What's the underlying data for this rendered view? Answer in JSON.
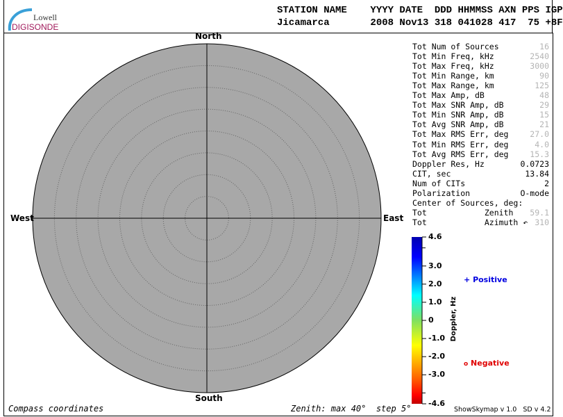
{
  "logo": {
    "line1": "Lowell",
    "line2": "DIGISONDE"
  },
  "header": {
    "labels": "STATION NAME    YYYY DATE  DDD HHMMSS AXN PPS IGP",
    "values": "Jicamarca       2008 Nov13 318 041028 417  75 +8F"
  },
  "stats": [
    {
      "label": "Tot Num of Sources",
      "value": "16",
      "grey": true
    },
    {
      "label": "Tot Min Freq, kHz",
      "value": "2540",
      "grey": true
    },
    {
      "label": "Tot Max Freq, kHz",
      "value": "3000",
      "grey": true
    },
    {
      "label": "Tot Min Range, km",
      "value": "90",
      "grey": true
    },
    {
      "label": "Tot Max Range, km",
      "value": "125",
      "grey": true
    },
    {
      "label": "Tot Max Amp, dB",
      "value": "48",
      "grey": true
    },
    {
      "label": "Tot Max SNR Amp, dB",
      "value": "29",
      "grey": true
    },
    {
      "label": "Tot Min SNR Amp, dB",
      "value": "15",
      "grey": true
    },
    {
      "label": "Tot Avg SNR Amp, dB",
      "value": "21",
      "grey": true
    },
    {
      "label": "Tot Max RMS Err, deg",
      "value": "27.0",
      "grey": true
    },
    {
      "label": "Tot Min RMS Err, deg",
      "value": "4.0",
      "grey": true
    },
    {
      "label": "Tot Avg RMS Err, deg",
      "value": "15.3",
      "grey": true
    },
    {
      "label": "Doppler Res, Hz",
      "value": "0.0723",
      "grey": false
    },
    {
      "label": "CIT, sec",
      "value": "13.84",
      "grey": false
    },
    {
      "label": "Num of CITs",
      "value": "2",
      "grey": false
    },
    {
      "label": "Polarization",
      "value": "O-mode",
      "grey": false
    },
    {
      "label": "Center of Sources, deg:",
      "value": "",
      "grey": false
    },
    {
      "label": "Tot            Zenith",
      "value": "59.1",
      "grey": true
    },
    {
      "label": "Tot            Azimuth ↶",
      "value": "310",
      "grey": true
    }
  ],
  "chart_data": {
    "type": "polar-skymap",
    "directions": {
      "north": "North",
      "south": "South",
      "east": "East",
      "west": "West"
    },
    "zenith_max_deg": 40,
    "zenith_step_deg": 5,
    "plot_bg": "#a8a8a8",
    "points": [],
    "colorbar": {
      "label": "Doppler, Hz",
      "min": -4.6,
      "max": 4.6,
      "ticks": [
        "4.6",
        "3.0",
        "2.0",
        "1.0",
        "0",
        "-1.0",
        "-2.0",
        "-3.0",
        "-4.6"
      ],
      "tick_values": [
        4.6,
        3,
        2,
        1,
        0,
        -1,
        -2,
        -3,
        -4.6
      ]
    },
    "legend": [
      {
        "symbol": "+",
        "label": "Positive",
        "color": "#0000e0"
      },
      {
        "symbol": "o",
        "label": "Negative",
        "color": "#e00000"
      }
    ]
  },
  "footer": {
    "left": "Compass coordinates",
    "center": "Zenith: max 40°  step 5°",
    "right": "ShowSkymap v 1.0   SD v 4.2"
  }
}
